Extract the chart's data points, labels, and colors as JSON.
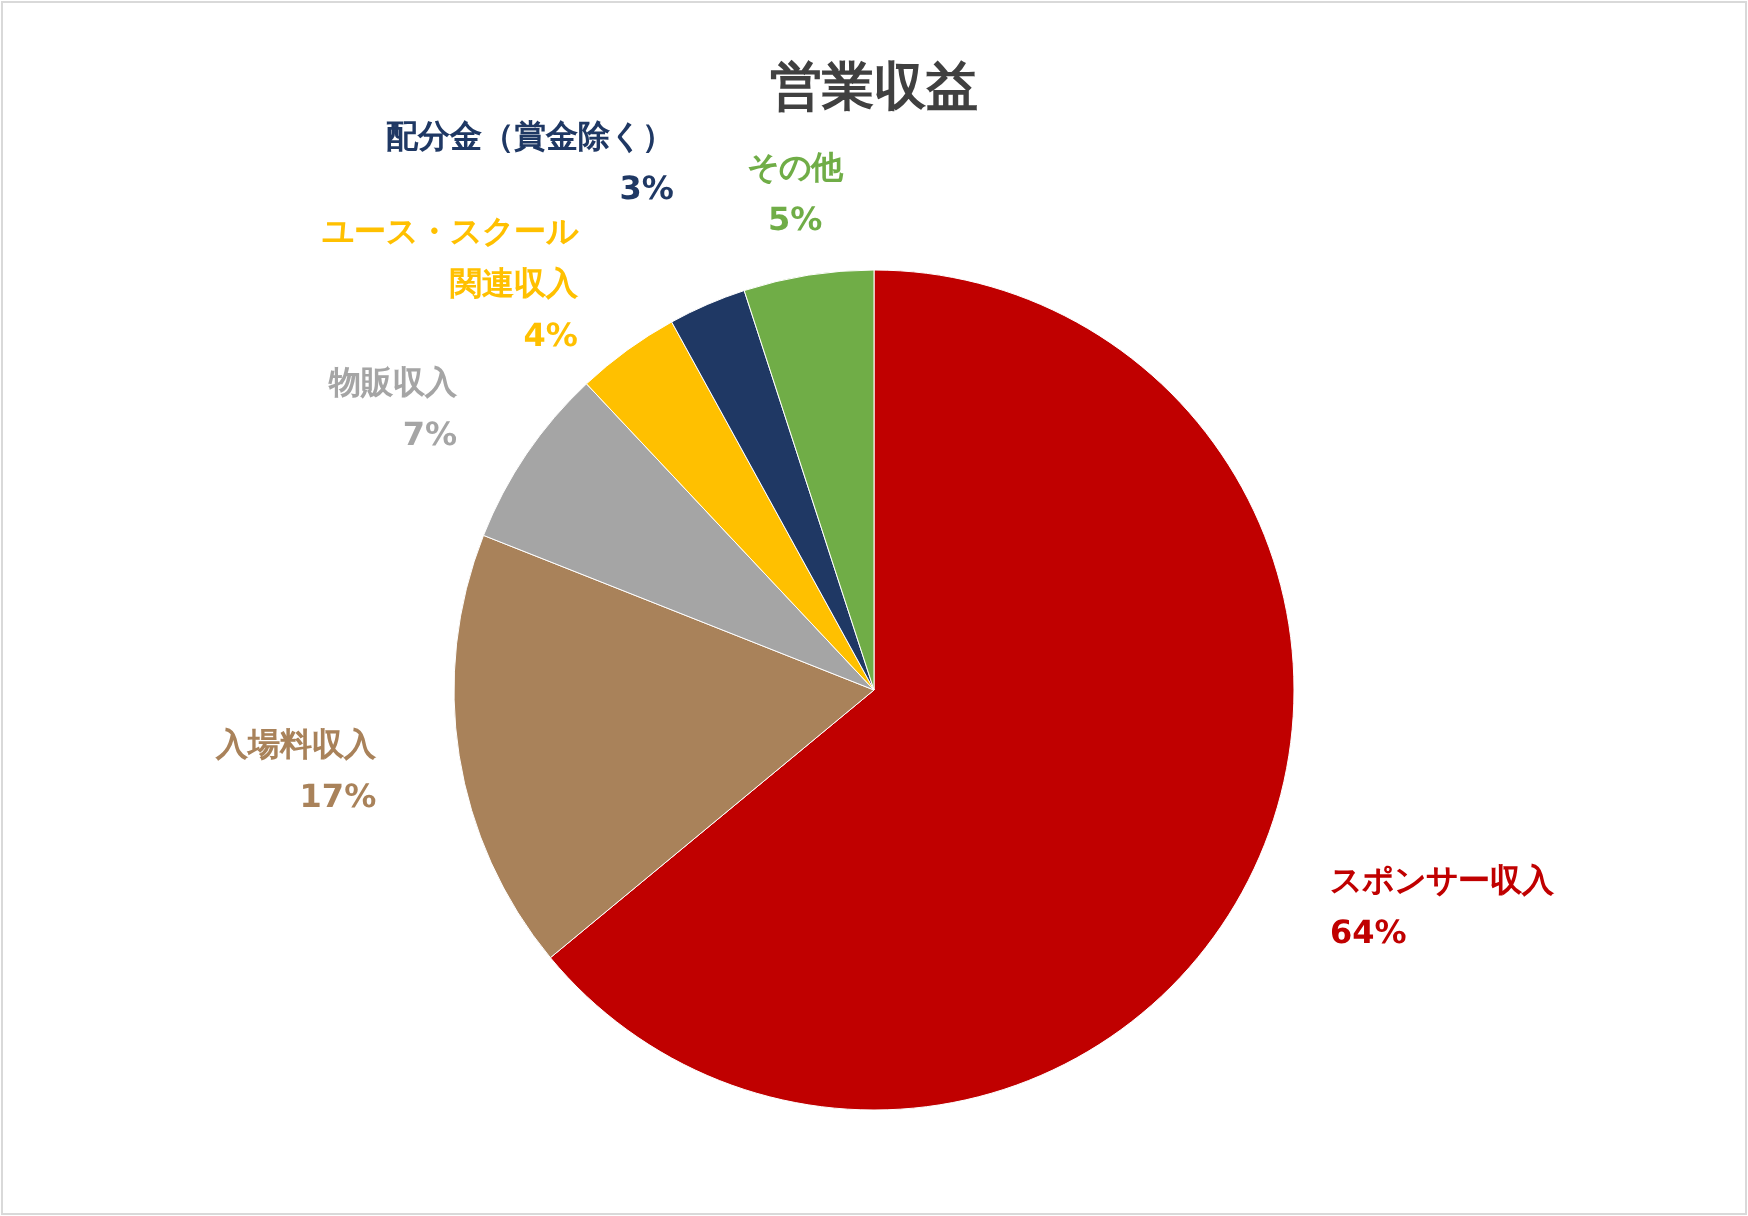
{
  "chart_data": {
    "type": "pie",
    "title": "営業収益",
    "categories": [
      "スポンサー収入",
      "入場料収入",
      "物販収入",
      "ユース・スクール関連収入",
      "配分金（賞金除く）",
      "その他"
    ],
    "values": [
      64,
      17,
      7,
      4,
      3,
      5
    ],
    "value_labels": [
      "64%",
      "17%",
      "7%",
      "4%",
      "3%",
      "5%"
    ],
    "colors": [
      "#c00000",
      "#a9825a",
      "#a5a5a5",
      "#ffc000",
      "#1f3864",
      "#70ad47"
    ]
  }
}
